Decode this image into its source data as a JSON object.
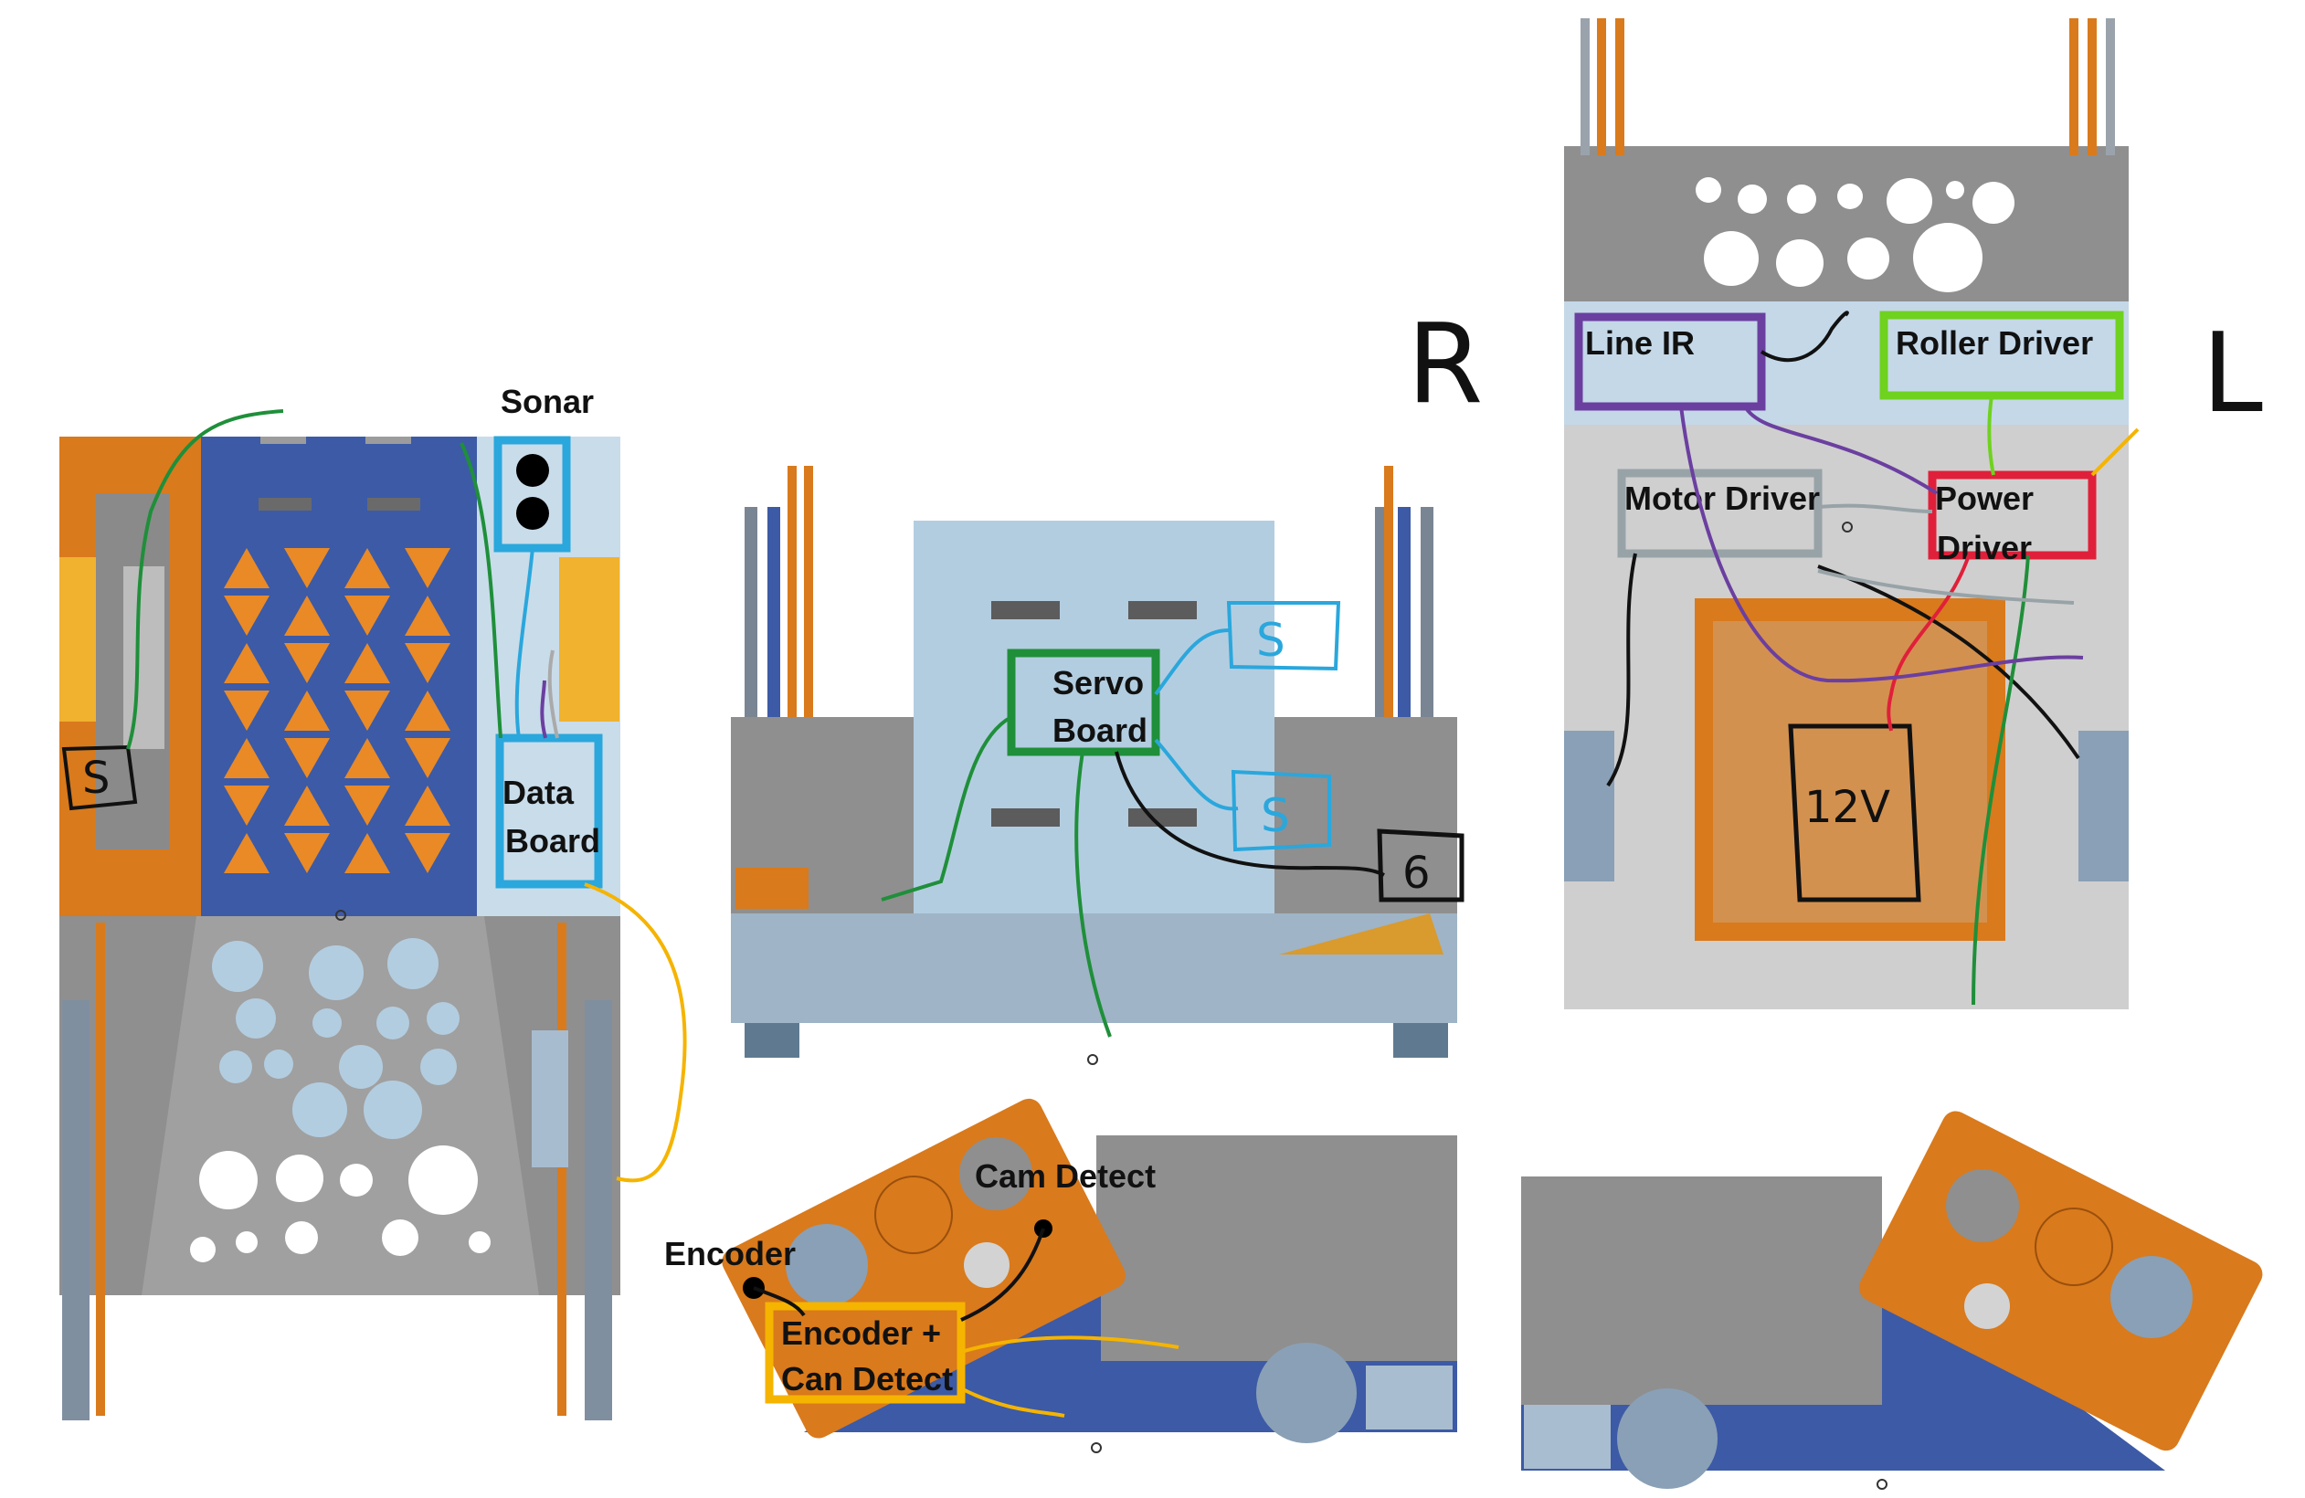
{
  "labels": {
    "sonar": "Sonar",
    "data_board_line1": "Data",
    "data_board_line2": "Board",
    "servo_board_line1": "Servo",
    "servo_board_line2": "Board",
    "line_ir": "Line IR",
    "roller_driver": "Roller Driver",
    "motor_driver": "Motor Driver",
    "power_driver_line1": "Power",
    "power_driver_line2": "Driver",
    "cam_detect": "Cam Detect",
    "encoder": "Encoder",
    "encoder_can_line1": "Encoder +",
    "encoder_can_line2": "Can Detect",
    "side_r": "R",
    "side_l": "L",
    "servo_mark": "S",
    "servo_mark_2": "S",
    "servo_mark_3": "S",
    "six_mark": "6",
    "twelve_v_mark": "12V"
  },
  "colors": {
    "orange": "#d97a1c",
    "blue_panel": "#3c5aa6",
    "light_blue": "#a9c6de",
    "gray": "#8f8f8f",
    "light_gray": "#cfcfcf",
    "box_blue": "#2aa7dc",
    "box_green": "#1f8f3a",
    "box_purple": "#6b3fa0",
    "box_lime": "#6fd21f",
    "box_red": "#e0203a",
    "box_gray": "#98a3a8",
    "box_yellow": "#f5b400"
  }
}
